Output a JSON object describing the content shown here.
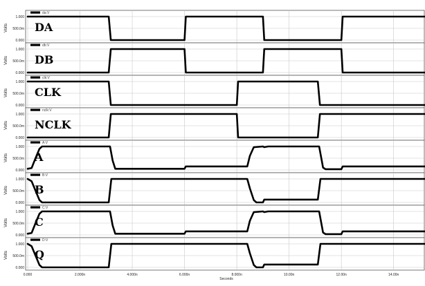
{
  "chart_data": {
    "type": "line",
    "title": "",
    "xlabel": "Seconds",
    "ylabel": "Volts",
    "xlim": [
      0,
      15.2
    ],
    "x_unit": "ns",
    "xticks": [
      "0.000",
      "2.000n",
      "4.000n",
      "6.000n",
      "8.000n",
      "10.00n",
      "12.00n",
      "14.00n"
    ],
    "xtick_values": [
      0,
      2,
      4,
      6,
      8,
      10,
      12,
      14
    ],
    "ylim": [
      0,
      1
    ],
    "yticks": [
      "1.000",
      "500.0m",
      "0.000"
    ],
    "ytick_values": [
      1,
      0.5,
      0
    ],
    "grid": true,
    "panels": [
      {
        "label": "DA",
        "legend": "da:V",
        "points": [
          [
            0,
            1
          ],
          [
            3.1,
            1
          ],
          [
            3.18,
            0
          ],
          [
            6.0,
            0
          ],
          [
            6.05,
            1
          ],
          [
            9.0,
            1
          ],
          [
            9.05,
            0
          ],
          [
            12.0,
            0
          ],
          [
            12.05,
            1
          ],
          [
            15.2,
            1
          ]
        ]
      },
      {
        "label": "DB",
        "legend": "db:V",
        "points": [
          [
            0,
            0
          ],
          [
            3.1,
            0
          ],
          [
            3.18,
            1
          ],
          [
            6.0,
            1
          ],
          [
            6.05,
            0
          ],
          [
            9.0,
            0
          ],
          [
            9.05,
            1
          ],
          [
            12.0,
            1
          ],
          [
            12.05,
            0
          ],
          [
            15.2,
            0
          ]
        ]
      },
      {
        "label": "CLK",
        "legend": "clk:V",
        "points": [
          [
            0,
            1
          ],
          [
            3.1,
            1
          ],
          [
            3.18,
            0
          ],
          [
            8.0,
            0
          ],
          [
            8.05,
            1
          ],
          [
            11.1,
            1
          ],
          [
            11.18,
            0
          ],
          [
            15.2,
            0
          ]
        ]
      },
      {
        "label": "NCLK",
        "legend": "nclk:V",
        "points": [
          [
            0,
            0
          ],
          [
            3.1,
            0
          ],
          [
            3.18,
            1
          ],
          [
            8.0,
            1
          ],
          [
            8.05,
            0
          ],
          [
            11.1,
            0
          ],
          [
            11.18,
            1
          ],
          [
            15.2,
            1
          ]
        ]
      },
      {
        "label": "A",
        "legend": "A:V",
        "points": [
          [
            0,
            0.05
          ],
          [
            0.15,
            0.08
          ],
          [
            0.3,
            0.5
          ],
          [
            0.45,
            0.9
          ],
          [
            0.55,
            1
          ],
          [
            3.15,
            1
          ],
          [
            3.25,
            0.4
          ],
          [
            3.35,
            0.05
          ],
          [
            6.0,
            0.05
          ],
          [
            6.05,
            0.15
          ],
          [
            8.4,
            0.15
          ],
          [
            8.5,
            0.6
          ],
          [
            8.65,
            0.97
          ],
          [
            9.0,
            1
          ],
          [
            9.05,
            0.97
          ],
          [
            9.2,
            1
          ],
          [
            11.15,
            1
          ],
          [
            11.3,
            0.1
          ],
          [
            11.4,
            0.03
          ],
          [
            12.0,
            0.03
          ],
          [
            12.05,
            0.15
          ],
          [
            15.2,
            0.15
          ]
        ]
      },
      {
        "label": "B",
        "legend": "B:V",
        "points": [
          [
            0,
            1
          ],
          [
            0.15,
            0.9
          ],
          [
            0.3,
            0.5
          ],
          [
            0.45,
            0.1
          ],
          [
            0.55,
            0
          ],
          [
            3.1,
            0
          ],
          [
            3.2,
            1
          ],
          [
            8.4,
            1
          ],
          [
            8.5,
            0.6
          ],
          [
            8.65,
            0.1
          ],
          [
            8.75,
            0
          ],
          [
            9.0,
            0
          ],
          [
            9.05,
            0.12
          ],
          [
            11.1,
            0.12
          ],
          [
            11.2,
            1
          ],
          [
            15.2,
            1
          ]
        ]
      },
      {
        "label": "C",
        "legend": "C:V",
        "points": [
          [
            0,
            0.05
          ],
          [
            0.15,
            0.08
          ],
          [
            0.3,
            0.5
          ],
          [
            0.45,
            0.9
          ],
          [
            0.55,
            1
          ],
          [
            3.15,
            1
          ],
          [
            3.25,
            0.4
          ],
          [
            3.35,
            0.05
          ],
          [
            6.0,
            0.05
          ],
          [
            6.05,
            0.15
          ],
          [
            8.4,
            0.15
          ],
          [
            8.5,
            0.6
          ],
          [
            8.65,
            0.97
          ],
          [
            9.0,
            1
          ],
          [
            9.05,
            0.97
          ],
          [
            9.2,
            1
          ],
          [
            11.15,
            1
          ],
          [
            11.3,
            0.1
          ],
          [
            11.4,
            0.03
          ],
          [
            12.0,
            0.03
          ],
          [
            12.05,
            0.15
          ],
          [
            15.2,
            0.15
          ]
        ]
      },
      {
        "label": "Q",
        "legend": "D:V",
        "points": [
          [
            0,
            1
          ],
          [
            0.15,
            0.9
          ],
          [
            0.3,
            0.5
          ],
          [
            0.45,
            0.1
          ],
          [
            0.55,
            0
          ],
          [
            3.1,
            0
          ],
          [
            3.2,
            1
          ],
          [
            8.4,
            1
          ],
          [
            8.5,
            0.6
          ],
          [
            8.65,
            0.1
          ],
          [
            8.75,
            0
          ],
          [
            9.0,
            0
          ],
          [
            9.05,
            0.12
          ],
          [
            11.1,
            0.12
          ],
          [
            11.2,
            1
          ],
          [
            15.2,
            1
          ]
        ]
      }
    ]
  },
  "style": {
    "trace_color": "#000000",
    "grid_color": "#c8c8c8",
    "border_color": "#555555"
  }
}
